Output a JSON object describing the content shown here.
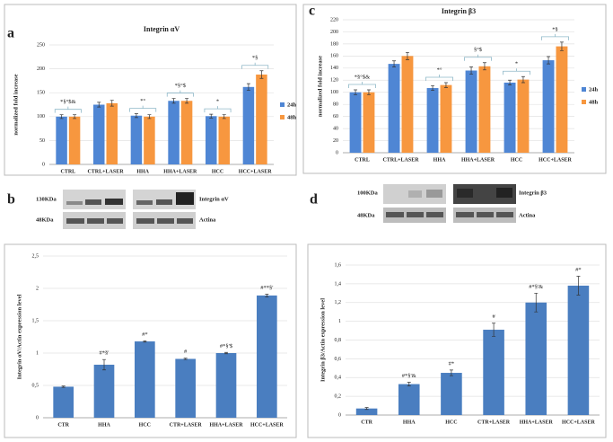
{
  "panel_labels": [
    "a",
    "b",
    "c",
    "d"
  ],
  "blots": [
    {
      "sizes": [
        "130KDa",
        "48KDa"
      ],
      "targets": [
        "Integrin αV",
        "Actina"
      ]
    },
    {
      "sizes": [
        "100KDa",
        "48KDa"
      ],
      "targets": [
        "Integrin β3",
        "Actina"
      ]
    }
  ],
  "chart_data": [
    {
      "type": "bar",
      "title": "Integrin αV",
      "y_label": "normalized fold increase",
      "categories": [
        "CTRL",
        "CTRL+LASER",
        "HHA",
        "HHA+LASER",
        "HCC",
        "HCC+LASER"
      ],
      "series": [
        {
          "name": "24h",
          "color": "#4f86d4",
          "values": [
            100,
            125,
            102,
            133,
            101,
            162
          ],
          "errors": [
            4,
            5,
            4,
            5,
            4,
            7
          ]
        },
        {
          "name": "48h",
          "color": "#f7973f",
          "values": [
            100,
            128,
            100,
            133,
            100,
            188
          ],
          "errors": [
            4,
            6,
            4,
            5,
            4,
            8
          ]
        }
      ],
      "annotations": [
        "*§°$&",
        null,
        "*°",
        "*§°$",
        "*",
        "*§"
      ],
      "ylim": [
        0,
        250
      ],
      "yticks": [
        0,
        50,
        100,
        150,
        200,
        250
      ],
      "grid": true,
      "legend": "right"
    },
    {
      "type": "bar",
      "title": "Integrin β3",
      "y_label": "normalized fold increase",
      "categories": [
        "CTRL",
        "CTRL+LASER",
        "HHA",
        "HHA+LASER",
        "HCC",
        "HCC+LASER"
      ],
      "series": [
        {
          "name": "24h",
          "color": "#4f86d4",
          "values": [
            100,
            147,
            107,
            136,
            116,
            153
          ],
          "errors": [
            4,
            5,
            4,
            6,
            4,
            6
          ]
        },
        {
          "name": "48h",
          "color": "#f7973f",
          "values": [
            100,
            160,
            112,
            143,
            121,
            176
          ],
          "errors": [
            4,
            6,
            4,
            6,
            5,
            7
          ]
        }
      ],
      "annotations": [
        "*§°$&",
        null,
        "*°",
        "§°$",
        "*",
        "*§"
      ],
      "ylim": [
        0,
        220
      ],
      "yticks": [
        0,
        20,
        40,
        60,
        80,
        100,
        120,
        140,
        160,
        180,
        200,
        220
      ],
      "grid": true,
      "legend": "right"
    },
    {
      "type": "bar",
      "y_label": "Integrin αV/Actin expression level",
      "categories": [
        "CTR",
        "HHA",
        "HCC",
        "CTR+LASER",
        "HHA+LASER",
        "HCC+LASER"
      ],
      "series": [
        {
          "color": "#4a7ec0",
          "values": [
            0.48,
            0.82,
            1.18,
            0.91,
            1.0,
            1.89
          ],
          "errors": [
            0.01,
            0.08,
            0.01,
            0.01,
            0.01,
            0.02
          ]
        }
      ],
      "annotations": [
        null,
        "#*§'",
        "#*",
        "#",
        "#*§'$",
        "#**§'"
      ],
      "ylim": [
        0,
        2.5
      ],
      "yticks": [
        0,
        {
          "value": 0.5,
          "label": "0,5"
        },
        1,
        {
          "value": 1.5,
          "label": "1,5"
        },
        2,
        {
          "value": 2.5,
          "label": "2,5"
        }
      ],
      "grid": true
    },
    {
      "type": "bar",
      "y_label": "Integrin β3/Actin expression level",
      "categories": [
        "CTR",
        "HHA",
        "HCC",
        "CTR+LASER",
        "HHA+LASER",
        "HCC+LASER"
      ],
      "series": [
        {
          "color": "#4a7ec0",
          "values": [
            0.07,
            0.33,
            0.45,
            0.91,
            1.2,
            1.38
          ],
          "errors": [
            0.01,
            0.02,
            0.03,
            0.07,
            0.1,
            0.1
          ]
        }
      ],
      "annotations": [
        null,
        "#*§'&",
        "#*",
        "#",
        "#*§'&",
        "#*"
      ],
      "ylim": [
        0,
        1.6
      ],
      "yticks": [
        0,
        {
          "value": 0.2,
          "label": "0,2"
        },
        {
          "value": 0.4,
          "label": "0,4"
        },
        {
          "value": 0.6,
          "label": "0,6"
        },
        {
          "value": 0.8,
          "label": "0,8"
        },
        1,
        {
          "value": 1.2,
          "label": "1,2"
        },
        {
          "value": 1.4,
          "label": "1,4"
        },
        {
          "value": 1.6,
          "label": "1,6"
        }
      ],
      "grid": true
    }
  ]
}
